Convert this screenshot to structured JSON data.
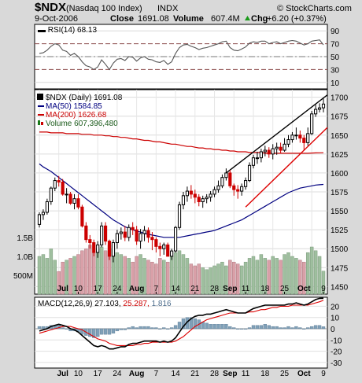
{
  "header": {
    "symbol": "$NDX",
    "name": "(Nasdaq 100 Index)",
    "exchange": "INDX",
    "date": "9-Oct-2006",
    "close_label": "Close",
    "close_value": "1691.08",
    "volume_label": "Volume",
    "volume_value": "607.4M",
    "chg_label": "Chg",
    "chg_value": "+6.20 (+0.37%)",
    "watermark": "© StockCharts.com",
    "chg_arrow_color": "#1a9a1a"
  },
  "rsi_panel": {
    "label": "RSI(14) 68.13",
    "y_ticks": [
      "90",
      "70",
      "50",
      "30",
      "10"
    ]
  },
  "price_panel": {
    "legend_title": "$NDX (Daily) 1691.08",
    "legend_ma50": "MA(50) 1584.85",
    "legend_ma200": "MA(200) 1626.68",
    "legend_volume": "Volume 607,396,480",
    "y_ticks": [
      "1700",
      "1675",
      "1650",
      "1625",
      "1600",
      "1575",
      "1550",
      "1525",
      "1500",
      "1475",
      "1450"
    ],
    "volume_ticks": [
      "1.5B",
      "1.0B",
      "500M"
    ],
    "x_month_labels": [
      "Jul",
      "Aug",
      "Sep",
      "Oct"
    ],
    "x_day_labels": [
      "10",
      "17",
      "24",
      "7",
      "14",
      "21",
      "28",
      "11",
      "18",
      "25",
      "9"
    ]
  },
  "macd_panel": {
    "label_prefix": "MACD(12,26,9)",
    "macd_value": "27.103,",
    "signal_value": "25.287,",
    "hist_value": "1.816",
    "y_ticks": [
      "20",
      "10",
      "0",
      "-10",
      "-20",
      "-30"
    ],
    "x_month_labels": [
      "Jul",
      "Aug",
      "Sep",
      "Oct"
    ],
    "x_day_labels": [
      "10",
      "17",
      "24",
      "7",
      "14",
      "21",
      "28",
      "11",
      "18",
      "25",
      "9"
    ]
  },
  "colors": {
    "up_candle": "#000000",
    "down_candle": "#cc0000",
    "ma50": "#000080",
    "ma200": "#cc0000",
    "volume_up": "#9fbf9f",
    "volume_down": "#d9a0a8",
    "trendline_upper": "#000000",
    "trendline_lower": "#dd0000",
    "rsi_line": "#555555",
    "macd_line": "#000000",
    "signal_line": "#dd0000",
    "histogram": "#7fa0b8"
  },
  "chart_data": [
    {
      "type": "candlestick",
      "title": "$NDX (Daily) 1691.08",
      "ylim": [
        1440,
        1710
      ],
      "x": [
        "2006-06-26",
        "2006-06-27",
        "2006-06-28",
        "2006-06-29",
        "2006-06-30",
        "2006-07-03",
        "2006-07-05",
        "2006-07-06",
        "2006-07-07",
        "2006-07-10",
        "2006-07-11",
        "2006-07-12",
        "2006-07-13",
        "2006-07-14",
        "2006-07-17",
        "2006-07-18",
        "2006-07-19",
        "2006-07-20",
        "2006-07-21",
        "2006-07-24",
        "2006-07-25",
        "2006-07-26",
        "2006-07-27",
        "2006-07-28",
        "2006-07-31",
        "2006-08-01",
        "2006-08-02",
        "2006-08-03",
        "2006-08-04",
        "2006-08-07",
        "2006-08-08",
        "2006-08-09",
        "2006-08-10",
        "2006-08-11",
        "2006-08-14",
        "2006-08-15",
        "2006-08-16",
        "2006-08-17",
        "2006-08-18",
        "2006-08-21",
        "2006-08-22",
        "2006-08-23",
        "2006-08-24",
        "2006-08-25",
        "2006-08-28",
        "2006-08-29",
        "2006-08-30",
        "2006-08-31",
        "2006-09-01",
        "2006-09-05",
        "2006-09-06",
        "2006-09-07",
        "2006-09-08",
        "2006-09-11",
        "2006-09-12",
        "2006-09-13",
        "2006-09-14",
        "2006-09-15",
        "2006-09-18",
        "2006-09-19",
        "2006-09-20",
        "2006-09-21",
        "2006-09-22",
        "2006-09-25",
        "2006-09-26",
        "2006-09-27",
        "2006-09-28",
        "2006-09-29",
        "2006-10-02",
        "2006-10-03",
        "2006-10-04",
        "2006-10-05",
        "2006-10-06",
        "2006-10-09"
      ],
      "open": [
        1532,
        1545,
        1548,
        1562,
        1580,
        1590,
        1588,
        1572,
        1572,
        1560,
        1566,
        1555,
        1530,
        1512,
        1508,
        1495,
        1505,
        1530,
        1510,
        1490,
        1508,
        1520,
        1522,
        1515,
        1528,
        1525,
        1510,
        1520,
        1524,
        1515,
        1512,
        1503,
        1500,
        1505,
        1490,
        1497,
        1528,
        1558,
        1570,
        1576,
        1572,
        1568,
        1562,
        1566,
        1568,
        1572,
        1578,
        1583,
        1594,
        1600,
        1583,
        1578,
        1576,
        1582,
        1590,
        1610,
        1620,
        1620,
        1628,
        1630,
        1625,
        1632,
        1634,
        1630,
        1638,
        1644,
        1650,
        1650,
        1646,
        1640,
        1652,
        1678,
        1684,
        1686
      ],
      "high": [
        1548,
        1552,
        1566,
        1582,
        1594,
        1596,
        1592,
        1580,
        1575,
        1572,
        1572,
        1558,
        1535,
        1518,
        1512,
        1510,
        1535,
        1535,
        1512,
        1512,
        1525,
        1528,
        1530,
        1532,
        1535,
        1530,
        1526,
        1530,
        1528,
        1522,
        1515,
        1508,
        1508,
        1508,
        1500,
        1530,
        1562,
        1575,
        1582,
        1584,
        1578,
        1572,
        1570,
        1572,
        1576,
        1582,
        1590,
        1598,
        1606,
        1604,
        1586,
        1584,
        1586,
        1594,
        1614,
        1624,
        1628,
        1632,
        1636,
        1634,
        1638,
        1640,
        1640,
        1646,
        1650,
        1654,
        1660,
        1656,
        1650,
        1660,
        1682,
        1690,
        1692,
        1698
      ],
      "low": [
        1528,
        1538,
        1545,
        1558,
        1576,
        1582,
        1570,
        1560,
        1558,
        1552,
        1552,
        1528,
        1508,
        1500,
        1490,
        1488,
        1502,
        1505,
        1485,
        1482,
        1500,
        1512,
        1510,
        1510,
        1518,
        1505,
        1500,
        1510,
        1508,
        1498,
        1495,
        1490,
        1492,
        1490,
        1485,
        1495,
        1525,
        1552,
        1562,
        1566,
        1560,
        1556,
        1554,
        1560,
        1562,
        1568,
        1574,
        1580,
        1590,
        1580,
        1570,
        1566,
        1570,
        1578,
        1588,
        1606,
        1612,
        1614,
        1622,
        1620,
        1618,
        1624,
        1626,
        1628,
        1634,
        1640,
        1644,
        1640,
        1630,
        1636,
        1650,
        1674,
        1680,
        1680
      ],
      "close": [
        1545,
        1548,
        1562,
        1580,
        1590,
        1588,
        1572,
        1572,
        1560,
        1566,
        1555,
        1530,
        1512,
        1508,
        1495,
        1505,
        1530,
        1510,
        1490,
        1508,
        1520,
        1522,
        1515,
        1528,
        1525,
        1510,
        1520,
        1524,
        1515,
        1512,
        1503,
        1500,
        1505,
        1490,
        1497,
        1528,
        1558,
        1570,
        1576,
        1572,
        1568,
        1562,
        1566,
        1568,
        1572,
        1578,
        1583,
        1594,
        1600,
        1583,
        1578,
        1576,
        1582,
        1590,
        1610,
        1620,
        1620,
        1628,
        1630,
        1625,
        1632,
        1634,
        1630,
        1638,
        1644,
        1650,
        1650,
        1646,
        1640,
        1652,
        1678,
        1684,
        1686,
        1691
      ],
      "ma50": [
        1612,
        1608,
        1605,
        1602,
        1598,
        1594,
        1590,
        1586,
        1582,
        1578,
        1574,
        1570,
        1566,
        1562,
        1558,
        1554,
        1550,
        1546,
        1542,
        1538,
        1535,
        1532,
        1529,
        1527,
        1525,
        1523,
        1522,
        1520,
        1519,
        1518,
        1517,
        1516,
        1515,
        1515,
        1515,
        1515,
        1515,
        1516,
        1517,
        1518,
        1519,
        1520,
        1521,
        1522,
        1523,
        1524,
        1526,
        1528,
        1530,
        1532,
        1534,
        1536,
        1538,
        1541,
        1544,
        1547,
        1550,
        1553,
        1556,
        1559,
        1562,
        1565,
        1568,
        1571,
        1574,
        1576,
        1578,
        1580,
        1581,
        1582,
        1583,
        1584,
        1584.5,
        1584.85
      ],
      "ma200": [
        1654,
        1654,
        1654,
        1653,
        1653,
        1653,
        1653,
        1652,
        1652,
        1652,
        1652,
        1651,
        1651,
        1651,
        1650,
        1650,
        1650,
        1649,
        1649,
        1648,
        1648,
        1647,
        1647,
        1646,
        1645,
        1645,
        1644,
        1643,
        1643,
        1642,
        1641,
        1641,
        1640,
        1639,
        1638,
        1638,
        1637,
        1636,
        1635,
        1635,
        1634,
        1633,
        1633,
        1632,
        1632,
        1631,
        1631,
        1630,
        1630,
        1629,
        1629,
        1628,
        1628,
        1628,
        1627,
        1627,
        1627,
        1627,
        1626,
        1626,
        1626,
        1626,
        1626,
        1626,
        1626,
        1626,
        1626,
        1626,
        1626,
        1626,
        1626.3,
        1626.5,
        1626.6,
        1626.68
      ],
      "volume": [
        1.0,
        1.05,
        0.95,
        1.2,
        0.9,
        0.6,
        0.85,
        0.9,
        0.95,
        1.0,
        1.05,
        1.15,
        1.2,
        1.3,
        1.1,
        1.2,
        1.25,
        1.15,
        1.3,
        1.2,
        1.1,
        1.05,
        1.0,
        0.95,
        0.85,
        1.0,
        1.05,
        0.95,
        0.9,
        0.85,
        0.8,
        0.95,
        0.9,
        0.85,
        1.0,
        1.1,
        1.15,
        1.05,
        0.95,
        0.8,
        0.75,
        0.8,
        0.7,
        0.65,
        0.7,
        0.75,
        0.8,
        0.85,
        0.75,
        0.9,
        0.85,
        0.8,
        0.75,
        0.85,
        0.95,
        1.0,
        0.9,
        1.05,
        0.95,
        0.9,
        1.0,
        0.95,
        0.9,
        1.05,
        1.1,
        1.0,
        0.95,
        0.9,
        0.85,
        1.1,
        1.25,
        1.15,
        1.0,
        0.61
      ]
    },
    {
      "type": "line",
      "title": "RSI(14) 68.13",
      "ylim": [
        0,
        100
      ],
      "series": [
        {
          "name": "RSI(14)",
          "values": [
            55,
            56,
            60,
            66,
            70,
            68,
            60,
            58,
            52,
            55,
            50,
            42,
            36,
            34,
            30,
            34,
            45,
            38,
            30,
            40,
            46,
            47,
            44,
            50,
            49,
            43,
            48,
            50,
            46,
            45,
            42,
            41,
            44,
            38,
            42,
            55,
            64,
            68,
            69,
            66,
            64,
            61,
            63,
            64,
            66,
            68,
            70,
            73,
            74,
            64,
            60,
            59,
            62,
            65,
            71,
            73,
            72,
            74,
            74,
            70,
            72,
            73,
            70,
            72,
            74,
            75,
            74,
            71,
            68,
            70,
            74,
            75,
            76,
            68.13
          ]
        }
      ]
    },
    {
      "type": "line",
      "title": "MACD(12,26,9)",
      "ylim": [
        -35,
        28
      ],
      "series": [
        {
          "name": "MACD",
          "values": [
            -2,
            -1,
            0,
            2,
            3,
            4,
            3,
            2,
            0,
            -1,
            -3,
            -6,
            -9,
            -12,
            -15,
            -16,
            -15,
            -16,
            -18,
            -18,
            -17,
            -16,
            -16,
            -14,
            -13,
            -13,
            -12,
            -11,
            -11,
            -11,
            -11,
            -12,
            -11,
            -12,
            -11,
            -8,
            -3,
            2,
            6,
            9,
            11,
            12,
            12,
            13,
            13,
            14,
            15,
            16,
            17,
            16,
            15,
            14,
            14,
            14,
            16,
            18,
            19,
            20,
            21,
            21,
            21,
            21,
            21,
            21,
            22,
            22,
            23,
            22,
            21,
            22,
            24,
            26,
            27,
            27.103
          ]
        },
        {
          "name": "Signal",
          "values": [
            -4,
            -3,
            -2,
            -1,
            0,
            1,
            2,
            2,
            2,
            1,
            0,
            -1,
            -3,
            -5,
            -7,
            -9,
            -10,
            -11,
            -13,
            -14,
            -15,
            -15,
            -15,
            -15,
            -15,
            -14,
            -14,
            -13,
            -13,
            -12,
            -12,
            -12,
            -12,
            -12,
            -12,
            -11,
            -9,
            -7,
            -4,
            -1,
            2,
            4,
            6,
            8,
            9,
            10,
            11,
            12,
            13,
            14,
            14,
            14,
            14,
            14,
            15,
            15,
            16,
            17,
            17,
            18,
            19,
            19,
            20,
            20,
            20,
            21,
            21,
            21,
            21,
            21,
            22,
            23,
            24,
            25.287
          ]
        },
        {
          "name": "Histogram",
          "values": [
            2,
            2,
            2,
            3,
            3,
            3,
            1,
            0,
            -2,
            -2,
            -3,
            -5,
            -6,
            -7,
            -8,
            -7,
            -5,
            -5,
            -5,
            -4,
            -2,
            -1,
            -1,
            1,
            2,
            1,
            2,
            2,
            2,
            1,
            1,
            0,
            1,
            0,
            1,
            3,
            6,
            9,
            10,
            10,
            9,
            8,
            6,
            5,
            4,
            4,
            4,
            4,
            4,
            2,
            1,
            0,
            0,
            0,
            1,
            3,
            3,
            3,
            4,
            3,
            2,
            2,
            1,
            1,
            2,
            1,
            2,
            1,
            0,
            1,
            2,
            3,
            3,
            1.816
          ]
        }
      ]
    }
  ]
}
